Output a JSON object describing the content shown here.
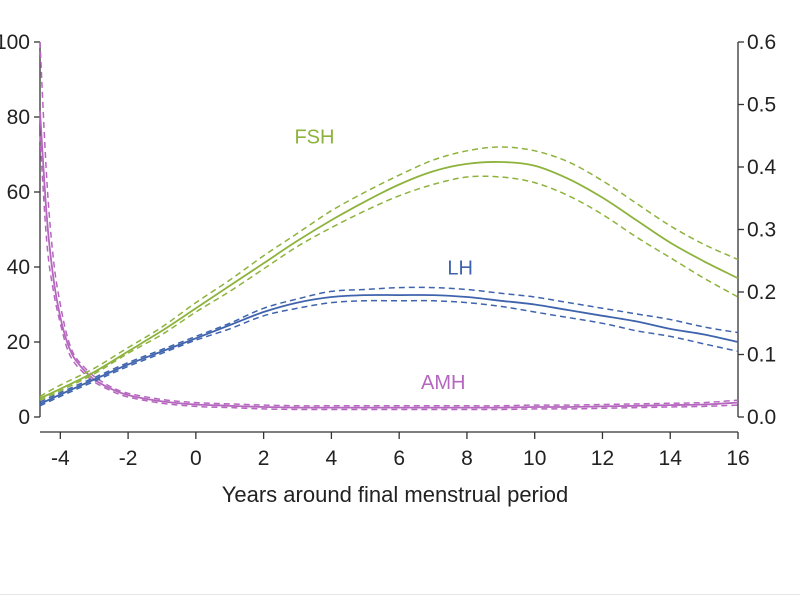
{
  "chart_data": {
    "type": "line",
    "title": "",
    "xlabel": "Years around final menstrual period",
    "ylabel_left": "",
    "ylabel_right": "",
    "xlim": [
      -4.6,
      16
    ],
    "ylim_left": [
      0,
      100
    ],
    "ylim_right": [
      0,
      0.6
    ],
    "x_ticks": [
      -4,
      -2,
      0,
      2,
      4,
      6,
      8,
      10,
      12,
      14,
      16
    ],
    "x_tick_labels": [
      "-4",
      "-2",
      "0",
      "2",
      "4",
      "6",
      "8",
      "10",
      "12",
      "14",
      "16"
    ],
    "y_left_ticks": [
      0,
      20,
      40,
      60,
      80,
      100
    ],
    "y_left_tick_labels": [
      "0",
      "20",
      "40",
      "60",
      "80",
      "100"
    ],
    "y_right_ticks": [
      0.0,
      0.1,
      0.2,
      0.3,
      0.4,
      0.5,
      0.6
    ],
    "y_right_tick_labels": [
      "0.0",
      "0.1",
      "0.2",
      "0.3",
      "0.4",
      "0.5",
      "0.6"
    ],
    "grid": false,
    "legend": "none",
    "series": [
      {
        "name": "FSH",
        "axis": "left",
        "color": "#8db33c",
        "label_at": [
          3.5,
          73
        ],
        "x": [
          -4.6,
          -4,
          -3,
          -2,
          -1,
          0,
          1,
          2,
          3,
          4,
          5,
          6,
          7,
          8,
          9,
          10,
          11,
          12,
          13,
          14,
          15,
          16
        ],
        "y": [
          5,
          7.5,
          12,
          17.5,
          23,
          29,
          35,
          41,
          47,
          52.5,
          57.5,
          62,
          65.5,
          67.5,
          68,
          67,
          63.5,
          58.5,
          52.5,
          46.5,
          41.5,
          37
        ],
        "lower": [
          4.5,
          7,
          11.5,
          17,
          22,
          28,
          33.5,
          39.5,
          45.5,
          50.5,
          55,
          59,
          62,
          64,
          64,
          62.5,
          59,
          54,
          48,
          42.5,
          37,
          32
        ],
        "upper": [
          5.5,
          8.5,
          13,
          18.5,
          24,
          30.5,
          36.5,
          43,
          49,
          55,
          60,
          64.5,
          68.5,
          71,
          72,
          71,
          68,
          63,
          57,
          51,
          46,
          42
        ]
      },
      {
        "name": "LH",
        "axis": "left",
        "color": "#3f64ad",
        "label_at": [
          7.8,
          38
        ],
        "x": [
          -4.6,
          -4,
          -3,
          -2,
          -1,
          0,
          1,
          2,
          3,
          4,
          5,
          6,
          7,
          8,
          9,
          10,
          11,
          12,
          13,
          14,
          15,
          16
        ],
        "y": [
          3.5,
          6,
          10,
          14,
          17.5,
          21,
          24.5,
          28,
          30.5,
          32,
          32.5,
          32.5,
          32.5,
          32,
          31,
          30,
          28.5,
          27,
          25.5,
          23.5,
          22,
          20
        ],
        "lower": [
          3,
          5.5,
          9.5,
          13.5,
          17,
          20.5,
          23.5,
          27,
          29,
          30.5,
          31,
          31,
          31,
          30.5,
          29.5,
          28,
          26.5,
          25,
          23,
          21.5,
          19.5,
          17.5
        ],
        "upper": [
          4,
          6.5,
          10.5,
          14.5,
          18,
          21.5,
          25,
          29,
          31.5,
          33.5,
          34,
          34.5,
          34.5,
          34,
          33,
          32,
          30.5,
          29,
          27.5,
          26,
          24,
          22.5
        ]
      },
      {
        "name": "AMH",
        "axis": "right",
        "color": "#b566be",
        "label_at": [
          7.3,
          0.045
        ],
        "x": [
          -4.6,
          -4.4,
          -4.2,
          -4,
          -3.8,
          -3.6,
          -3.3,
          -3,
          -2.5,
          -2,
          -1,
          0,
          1,
          2,
          3,
          4,
          5,
          6,
          7,
          8,
          9,
          10,
          11,
          12,
          13,
          14,
          15,
          16
        ],
        "y": [
          0.49,
          0.32,
          0.22,
          0.16,
          0.12,
          0.095,
          0.075,
          0.06,
          0.045,
          0.035,
          0.025,
          0.02,
          0.018,
          0.016,
          0.015,
          0.015,
          0.015,
          0.015,
          0.015,
          0.015,
          0.015,
          0.016,
          0.016,
          0.017,
          0.018,
          0.019,
          0.02,
          0.023
        ],
        "lower": [
          0.45,
          0.28,
          0.2,
          0.15,
          0.11,
          0.088,
          0.07,
          0.056,
          0.042,
          0.032,
          0.022,
          0.017,
          0.015,
          0.013,
          0.012,
          0.012,
          0.012,
          0.012,
          0.012,
          0.012,
          0.012,
          0.013,
          0.013,
          0.014,
          0.015,
          0.016,
          0.017,
          0.019
        ],
        "upper": [
          0.6,
          0.38,
          0.25,
          0.18,
          0.13,
          0.1,
          0.08,
          0.065,
          0.048,
          0.038,
          0.028,
          0.023,
          0.021,
          0.019,
          0.018,
          0.018,
          0.018,
          0.018,
          0.018,
          0.018,
          0.018,
          0.019,
          0.019,
          0.02,
          0.021,
          0.022,
          0.023,
          0.027
        ]
      }
    ]
  }
}
